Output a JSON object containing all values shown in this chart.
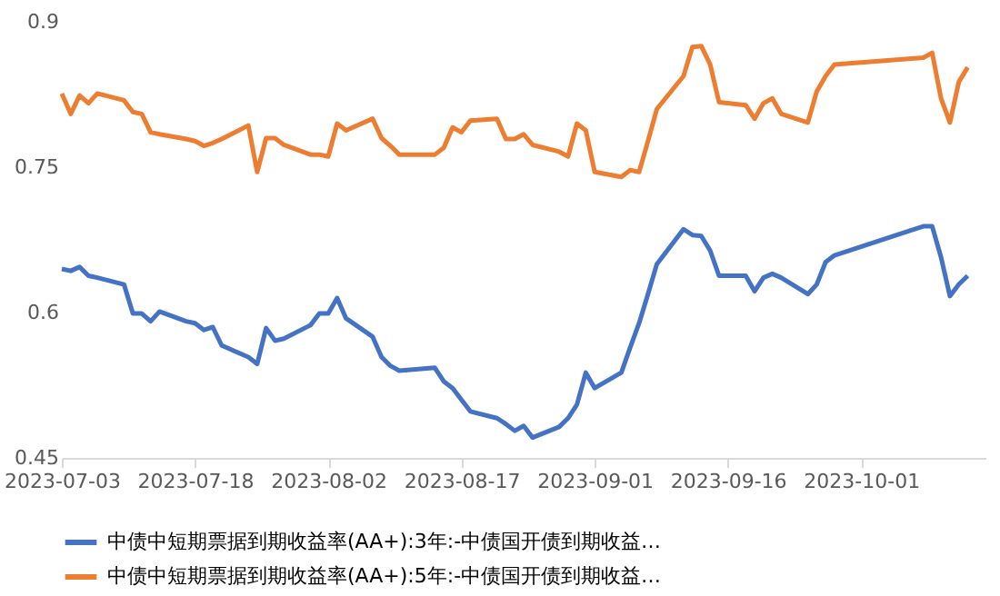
{
  "chart_data": {
    "type": "line",
    "x": [
      "2023-07-03",
      "2023-07-04",
      "2023-07-05",
      "2023-07-06",
      "2023-07-07",
      "2023-07-10",
      "2023-07-11",
      "2023-07-12",
      "2023-07-13",
      "2023-07-14",
      "2023-07-17",
      "2023-07-18",
      "2023-07-19",
      "2023-07-20",
      "2023-07-21",
      "2023-07-24",
      "2023-07-25",
      "2023-07-26",
      "2023-07-27",
      "2023-07-28",
      "2023-07-31",
      "2023-08-01",
      "2023-08-02",
      "2023-08-03",
      "2023-08-04",
      "2023-08-07",
      "2023-08-08",
      "2023-08-09",
      "2023-08-10",
      "2023-08-14",
      "2023-08-15",
      "2023-08-16",
      "2023-08-17",
      "2023-08-18",
      "2023-08-21",
      "2023-08-22",
      "2023-08-23",
      "2023-08-24",
      "2023-08-25",
      "2023-08-28",
      "2023-08-29",
      "2023-08-30",
      "2023-08-31",
      "2023-09-01",
      "2023-09-04",
      "2023-09-05",
      "2023-09-06",
      "2023-09-07",
      "2023-09-08",
      "2023-09-11",
      "2023-09-12",
      "2023-09-13",
      "2023-09-14",
      "2023-09-15",
      "2023-09-18",
      "2023-09-19",
      "2023-09-20",
      "2023-09-21",
      "2023-09-22",
      "2023-09-25",
      "2023-09-26",
      "2023-09-27",
      "2023-09-28",
      "2023-10-08",
      "2023-10-09",
      "2023-10-10",
      "2023-10-11",
      "2023-10-12",
      "2023-10-13"
    ],
    "series": [
      {
        "name": "中债中短期票据到期收益率(AA+):3年:-中债国开债到期收益…",
        "color": "#4472c4",
        "values": [
          0.645,
          0.643,
          0.647,
          0.638,
          0.636,
          0.629,
          0.599,
          0.599,
          0.591,
          0.601,
          0.591,
          0.589,
          0.582,
          0.585,
          0.566,
          0.554,
          0.547,
          0.584,
          0.571,
          0.573,
          0.587,
          0.599,
          0.599,
          0.615,
          0.594,
          0.575,
          0.554,
          0.545,
          0.54,
          0.543,
          0.529,
          0.522,
          0.51,
          0.498,
          0.491,
          0.485,
          0.478,
          0.483,
          0.471,
          0.482,
          0.491,
          0.505,
          0.538,
          0.522,
          0.538,
          0.564,
          0.589,
          0.619,
          0.65,
          0.686,
          0.68,
          0.679,
          0.664,
          0.638,
          0.638,
          0.622,
          0.636,
          0.64,
          0.636,
          0.619,
          0.629,
          0.652,
          0.659,
          0.689,
          0.689,
          0.657,
          0.617,
          0.629,
          0.638
        ]
      },
      {
        "name": "中债中短期票据到期收益率(AA+):5年:-中债国开债到期收益…",
        "color": "#ed7d31",
        "values": [
          0.826,
          0.805,
          0.824,
          0.816,
          0.826,
          0.819,
          0.807,
          0.805,
          0.786,
          0.784,
          0.779,
          0.777,
          0.772,
          0.775,
          0.779,
          0.793,
          0.745,
          0.78,
          0.78,
          0.773,
          0.763,
          0.763,
          0.761,
          0.795,
          0.788,
          0.8,
          0.78,
          0.772,
          0.763,
          0.763,
          0.77,
          0.791,
          0.786,
          0.798,
          0.8,
          0.779,
          0.779,
          0.784,
          0.773,
          0.766,
          0.761,
          0.795,
          0.788,
          0.745,
          0.74,
          0.747,
          0.745,
          0.777,
          0.81,
          0.844,
          0.874,
          0.875,
          0.856,
          0.817,
          0.814,
          0.8,
          0.816,
          0.821,
          0.805,
          0.796,
          0.828,
          0.844,
          0.856,
          0.863,
          0.868,
          0.821,
          0.796,
          0.838,
          0.853
        ]
      }
    ],
    "xlim": [
      "2023-07-03",
      "2023-10-15"
    ],
    "xticks": [
      "2023-07-03",
      "2023-07-18",
      "2023-08-02",
      "2023-08-17",
      "2023-09-01",
      "2023-09-16",
      "2023-10-01"
    ],
    "ylim": [
      0.45,
      0.9
    ],
    "yticks": [
      0.45,
      0.6,
      0.75,
      0.9
    ],
    "grid": false,
    "legend": "bottom",
    "marker": "none",
    "line_style": "solid"
  }
}
